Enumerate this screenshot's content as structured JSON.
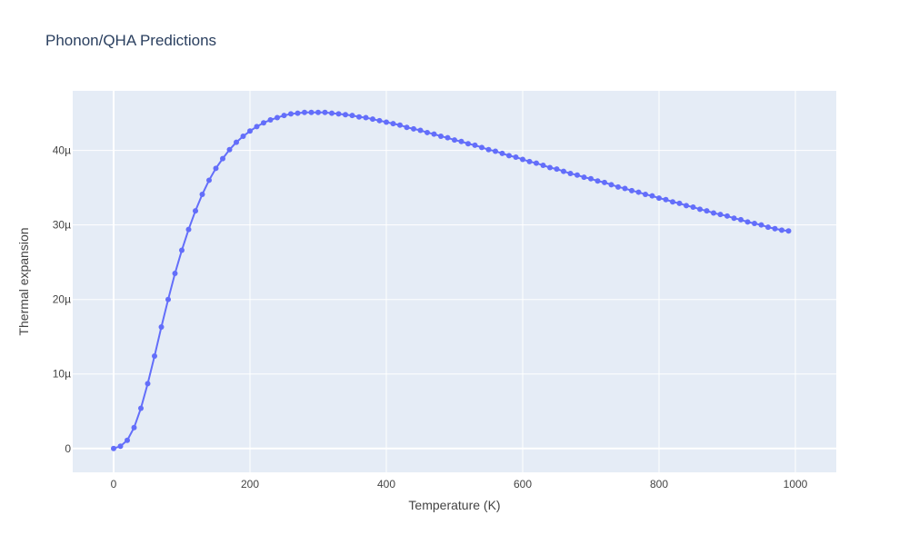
{
  "chart_data": {
    "type": "line",
    "title": "Phonon/QHA Predictions",
    "xlabel": "Temperature (K)",
    "ylabel": "Thermal expansion",
    "xlim": [
      -60,
      1060
    ],
    "ylim": [
      -3.2,
      48
    ],
    "x_ticks": [
      0,
      200,
      400,
      600,
      800,
      1000
    ],
    "x_tick_labels": [
      "0",
      "200",
      "400",
      "600",
      "800",
      "1000"
    ],
    "y_ticks": [
      0,
      10,
      20,
      30,
      40
    ],
    "y_tick_labels": [
      "0",
      "10µ",
      "20µ",
      "30µ",
      "40µ"
    ],
    "y_unit": "1e-6",
    "grid": true,
    "legend": "none",
    "colors": {
      "series": "#636efa",
      "plot_bg": "#e5ecf6",
      "grid": "#ffffff"
    },
    "series": [
      {
        "mode": "lines+markers",
        "x": [
          0,
          10,
          20,
          30,
          40,
          50,
          60,
          70,
          80,
          90,
          100,
          110,
          120,
          130,
          140,
          150,
          160,
          170,
          180,
          190,
          200,
          210,
          220,
          230,
          240,
          250,
          260,
          270,
          280,
          290,
          300,
          310,
          320,
          330,
          340,
          350,
          360,
          370,
          380,
          390,
          400,
          410,
          420,
          430,
          440,
          450,
          460,
          470,
          480,
          490,
          500,
          510,
          520,
          530,
          540,
          550,
          560,
          570,
          580,
          590,
          600,
          610,
          620,
          630,
          640,
          650,
          660,
          670,
          680,
          690,
          700,
          710,
          720,
          730,
          740,
          750,
          760,
          770,
          780,
          790,
          800,
          810,
          820,
          830,
          840,
          850,
          860,
          870,
          880,
          890,
          900,
          910,
          920,
          930,
          940,
          950,
          960,
          970,
          980,
          990
        ],
        "y": [
          0,
          0.3,
          1.1,
          2.8,
          5.4,
          8.7,
          12.4,
          16.3,
          20.0,
          23.5,
          26.6,
          29.4,
          31.9,
          34.1,
          36.0,
          37.6,
          38.9,
          40.1,
          41.1,
          41.9,
          42.6,
          43.2,
          43.7,
          44.1,
          44.4,
          44.7,
          44.9,
          45.0,
          45.1,
          45.1,
          45.1,
          45.1,
          45.0,
          44.9,
          44.8,
          44.7,
          44.5,
          44.4,
          44.2,
          44.0,
          43.8,
          43.6,
          43.4,
          43.1,
          42.9,
          42.7,
          42.4,
          42.2,
          41.9,
          41.7,
          41.4,
          41.2,
          40.9,
          40.7,
          40.4,
          40.1,
          39.9,
          39.6,
          39.3,
          39.1,
          38.8,
          38.5,
          38.3,
          38.0,
          37.7,
          37.5,
          37.2,
          36.9,
          36.7,
          36.4,
          36.2,
          35.9,
          35.7,
          35.4,
          35.1,
          34.9,
          34.6,
          34.4,
          34.1,
          33.9,
          33.6,
          33.4,
          33.1,
          32.9,
          32.6,
          32.4,
          32.1,
          31.9,
          31.6,
          31.4,
          31.2,
          30.9,
          30.7,
          30.4,
          30.2,
          30.0,
          29.7,
          29.5,
          29.3,
          29.2
        ]
      }
    ]
  }
}
